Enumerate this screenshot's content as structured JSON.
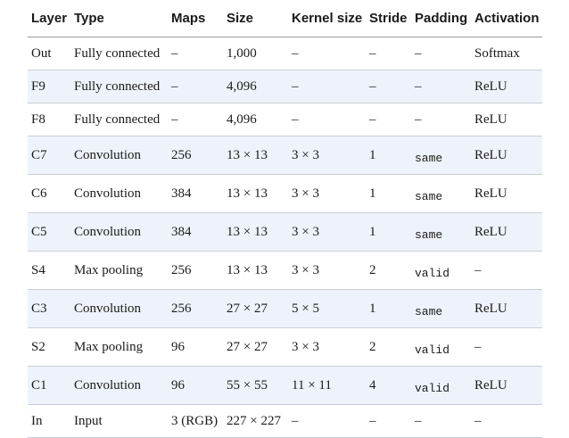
{
  "table": {
    "headers": [
      "Layer",
      "Type",
      "Maps",
      "Size",
      "Kernel size",
      "Stride",
      "Padding",
      "Activation"
    ],
    "rows": [
      {
        "layer": "Out",
        "type": "Fully connected",
        "maps": "–",
        "size": "1,000",
        "kernel": "–",
        "stride": "–",
        "padding": "–",
        "activation": "Softmax"
      },
      {
        "layer": "F9",
        "type": "Fully connected",
        "maps": "–",
        "size": "4,096",
        "kernel": "–",
        "stride": "–",
        "padding": "–",
        "activation": "ReLU"
      },
      {
        "layer": "F8",
        "type": "Fully connected",
        "maps": "–",
        "size": "4,096",
        "kernel": "–",
        "stride": "–",
        "padding": "–",
        "activation": "ReLU"
      },
      {
        "layer": "C7",
        "type": "Convolution",
        "maps": "256",
        "size": "13 × 13",
        "kernel": "3 × 3",
        "stride": "1",
        "padding": "same",
        "activation": "ReLU"
      },
      {
        "layer": "C6",
        "type": "Convolution",
        "maps": "384",
        "size": "13 × 13",
        "kernel": "3 × 3",
        "stride": "1",
        "padding": "same",
        "activation": "ReLU"
      },
      {
        "layer": "C5",
        "type": "Convolution",
        "maps": "384",
        "size": "13 × 13",
        "kernel": "3 × 3",
        "stride": "1",
        "padding": "same",
        "activation": "ReLU"
      },
      {
        "layer": "S4",
        "type": "Max pooling",
        "maps": "256",
        "size": "13 × 13",
        "kernel": "3 × 3",
        "stride": "2",
        "padding": "valid",
        "activation": "–"
      },
      {
        "layer": "C3",
        "type": "Convolution",
        "maps": "256",
        "size": "27 × 27",
        "kernel": "5 × 5",
        "stride": "1",
        "padding": "same",
        "activation": "ReLU"
      },
      {
        "layer": "S2",
        "type": "Max pooling",
        "maps": "96",
        "size": "27 × 27",
        "kernel": "3 × 3",
        "stride": "2",
        "padding": "valid",
        "activation": "–"
      },
      {
        "layer": "C1",
        "type": "Convolution",
        "maps": "96",
        "size": "55 × 55",
        "kernel": "11 × 11",
        "stride": "4",
        "padding": "valid",
        "activation": "ReLU"
      },
      {
        "layer": "In",
        "type": "Input",
        "maps": "3 (RGB)",
        "size": "227 × 227",
        "kernel": "–",
        "stride": "–",
        "padding": "–",
        "activation": "–"
      }
    ]
  },
  "colors": {
    "shaded_row": "#eef3fb",
    "row_rule": "#c9ced6",
    "text": "#1a1a1a"
  }
}
